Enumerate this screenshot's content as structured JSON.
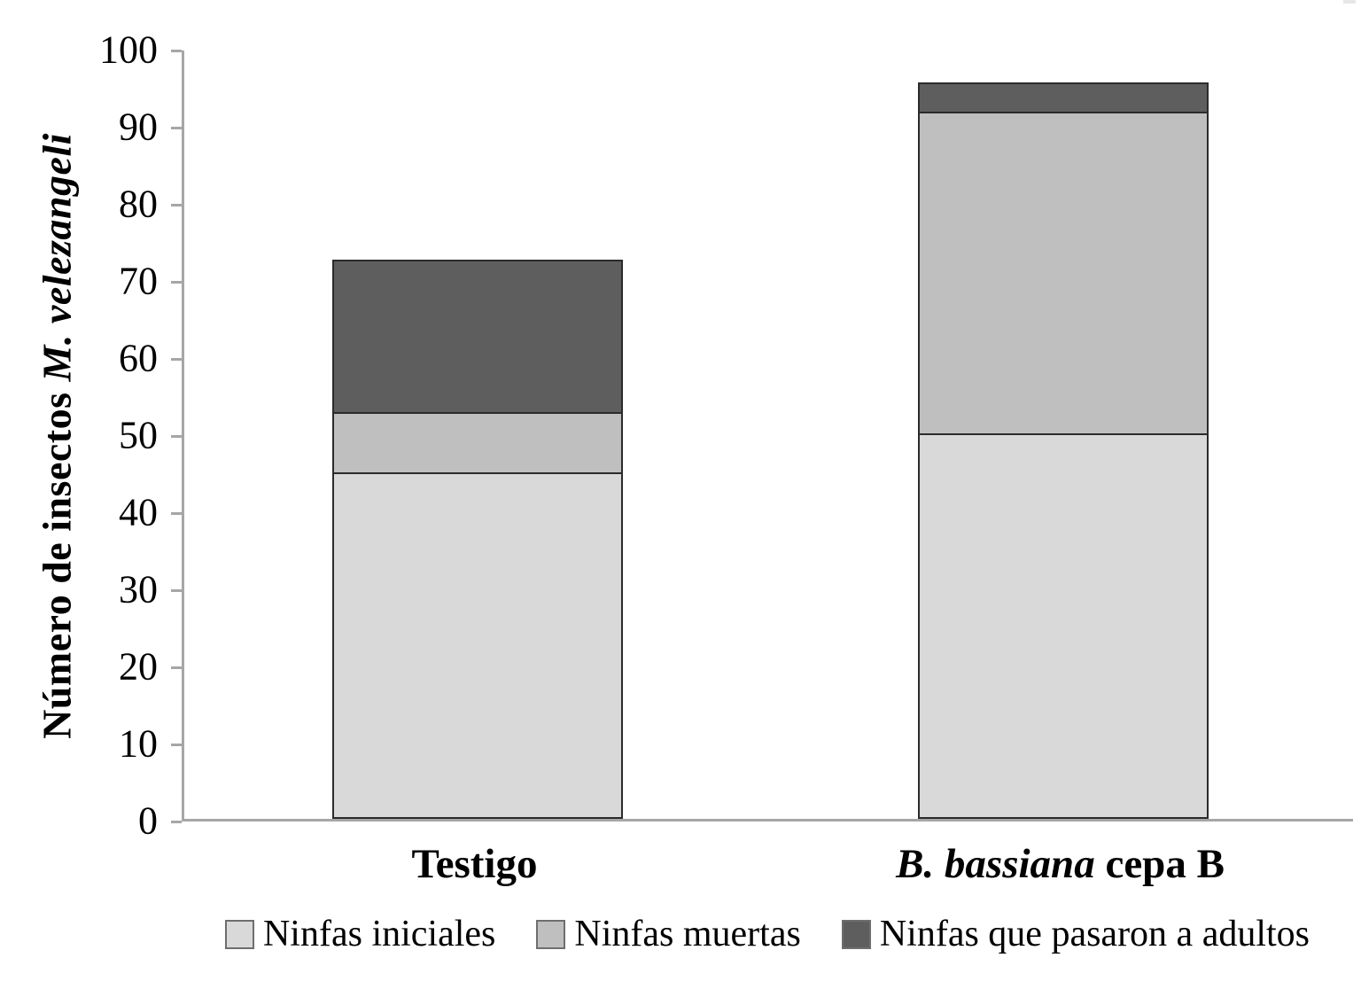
{
  "chart_data": {
    "type": "bar",
    "stacked": true,
    "title": "",
    "xlabel": "",
    "ylabel": "Número de insectos M. velezangeli",
    "ylabel_parts": {
      "normal": "Número de insectos ",
      "italic": "M. velezangeli"
    },
    "ylim": [
      0,
      100
    ],
    "ytick_step": 10,
    "yticks": [
      0,
      10,
      20,
      30,
      40,
      50,
      60,
      70,
      80,
      90,
      100
    ],
    "grid": false,
    "legend_position": "bottom",
    "categories": [
      "Testigo",
      "B. bassiana cepa B"
    ],
    "categories_rich": [
      {
        "italic_prefix": "",
        "normal": "Testigo"
      },
      {
        "italic_prefix": "B. bassiana",
        "normal": " cepa B"
      }
    ],
    "series": [
      {
        "name": "Ninfas iniciales",
        "color": "#d9d9d9",
        "values": [
          45,
          50
        ]
      },
      {
        "name": "Ninfas muertas",
        "color": "#bfbfbf",
        "values": [
          8,
          42
        ]
      },
      {
        "name": "Ninfas que pasaron a adultos",
        "color": "#5e5e5e",
        "values": [
          20,
          4
        ]
      }
    ],
    "stack_totals": [
      73,
      96
    ],
    "axis_color": "#a6a6a6",
    "bar_border_color": "#2b2b2b",
    "text_color": "#000000",
    "background_color": "#ffffff"
  }
}
